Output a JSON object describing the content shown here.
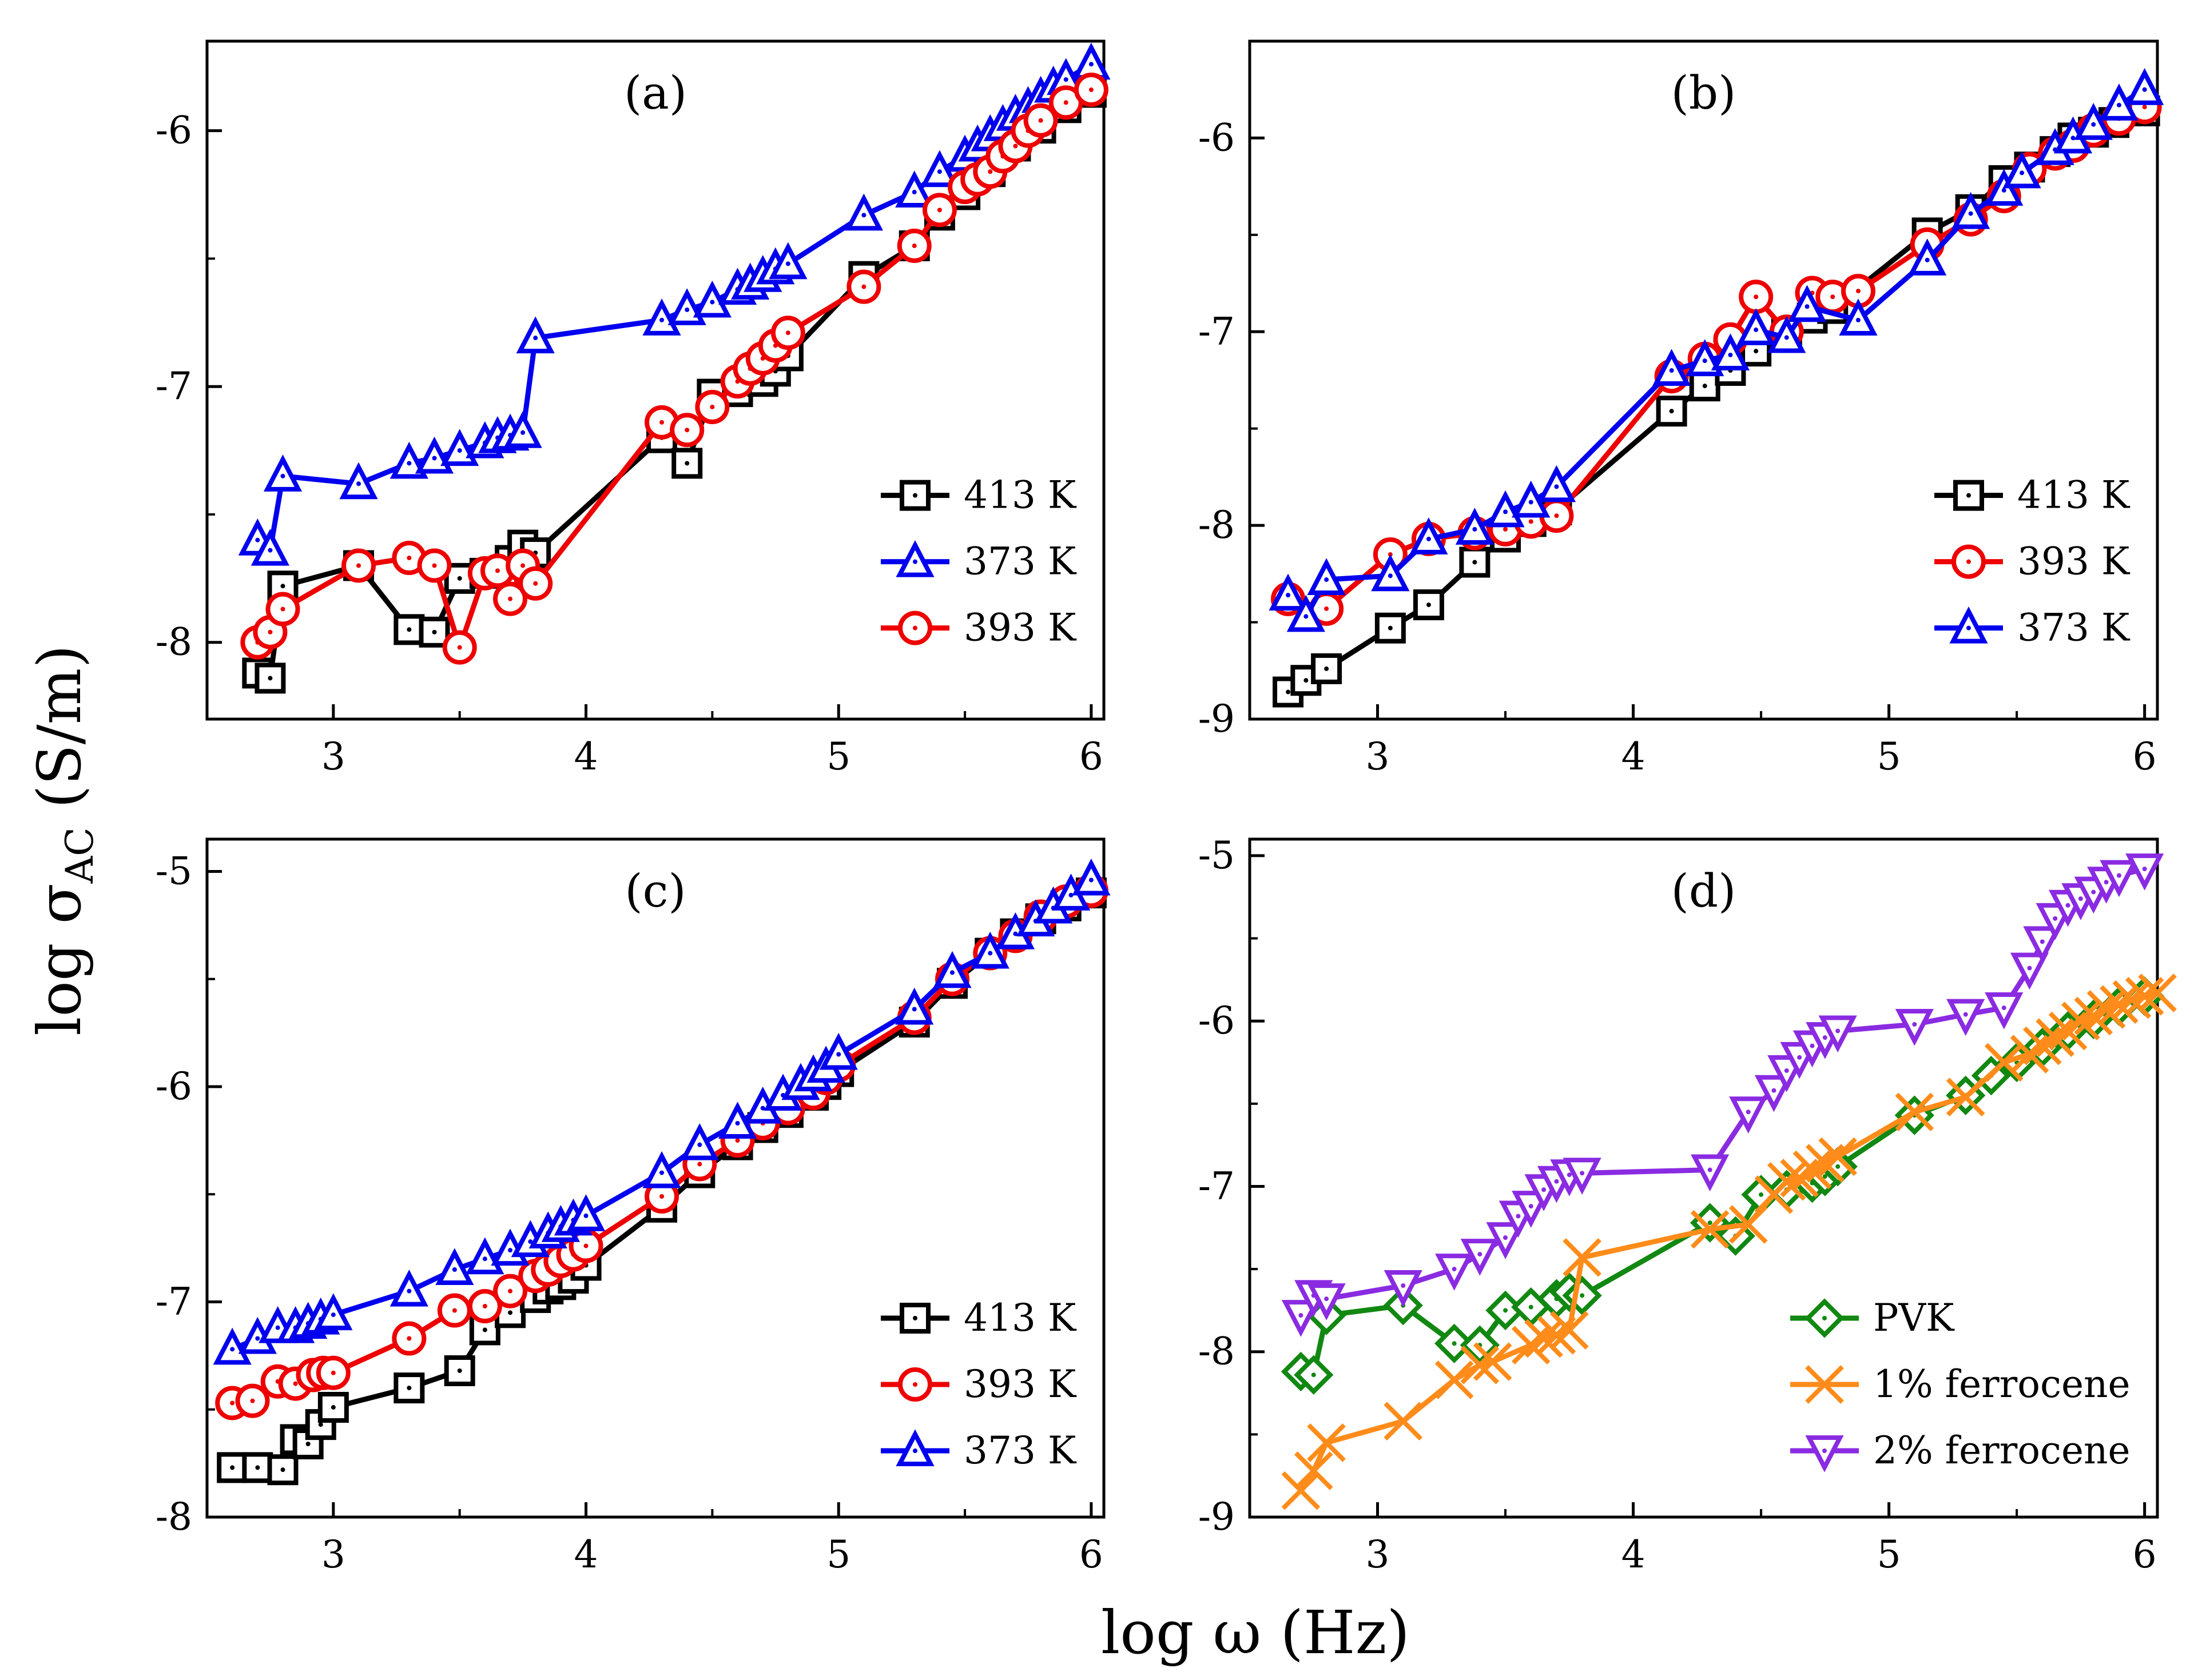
{
  "figure": {
    "xlabel_main": "log ω (Hz)",
    "ylabel_main_prefix": "log σ",
    "ylabel_main_sub": "AC",
    "ylabel_main_suffix": " (S/m)"
  },
  "chart_data": [
    {
      "type": "line",
      "panel_label": "(a)",
      "xlim": [
        2.5,
        6.05
      ],
      "ylim": [
        -8.3,
        -5.65
      ],
      "xticks": [
        3,
        4,
        5,
        6
      ],
      "yticks": [
        -8,
        -7,
        -6
      ],
      "legend": "right-middle",
      "series": [
        {
          "name": "413 K",
          "color": "#000000",
          "marker": "square",
          "x": [
            2.7,
            2.75,
            2.8,
            3.1,
            3.3,
            3.4,
            3.5,
            3.6,
            3.7,
            3.75,
            3.8,
            4.3,
            4.4,
            4.5,
            4.6,
            4.7,
            4.75,
            4.8,
            5.1,
            5.3,
            5.4,
            5.5,
            5.6,
            5.7,
            5.8,
            5.9,
            6.0
          ],
          "y": [
            -8.12,
            -8.14,
            -7.78,
            -7.7,
            -7.95,
            -7.96,
            -7.75,
            -7.73,
            -7.68,
            -7.62,
            -7.65,
            -7.2,
            -7.3,
            -7.03,
            -7.02,
            -6.98,
            -6.94,
            -6.88,
            -6.57,
            -6.45,
            -6.33,
            -6.25,
            -6.16,
            -6.06,
            -5.99,
            -5.91,
            -5.85
          ]
        },
        {
          "name": "373 K",
          "color": "#0000ee",
          "marker": "triangle",
          "x": [
            2.7,
            2.75,
            2.8,
            3.1,
            3.3,
            3.4,
            3.5,
            3.6,
            3.65,
            3.7,
            3.75,
            3.8,
            4.3,
            4.4,
            4.5,
            4.6,
            4.65,
            4.7,
            4.75,
            4.8,
            5.1,
            5.3,
            5.4,
            5.5,
            5.55,
            5.6,
            5.65,
            5.7,
            5.75,
            5.8,
            5.85,
            5.9,
            6.0
          ],
          "y": [
            -7.6,
            -7.64,
            -7.35,
            -7.38,
            -7.3,
            -7.28,
            -7.25,
            -7.22,
            -7.2,
            -7.19,
            -7.18,
            -6.81,
            -6.74,
            -6.7,
            -6.67,
            -6.62,
            -6.6,
            -6.57,
            -6.54,
            -6.52,
            -6.33,
            -6.24,
            -6.16,
            -6.1,
            -6.06,
            -6.02,
            -5.98,
            -5.94,
            -5.91,
            -5.87,
            -5.83,
            -5.8,
            -5.74
          ]
        },
        {
          "name": "393 K",
          "color": "#ee0000",
          "marker": "circle",
          "x": [
            2.7,
            2.75,
            2.8,
            3.1,
            3.3,
            3.4,
            3.5,
            3.6,
            3.65,
            3.7,
            3.75,
            3.8,
            4.3,
            4.4,
            4.5,
            4.6,
            4.65,
            4.7,
            4.75,
            4.8,
            5.1,
            5.3,
            5.4,
            5.5,
            5.55,
            5.6,
            5.65,
            5.7,
            5.75,
            5.8,
            5.9,
            6.0
          ],
          "y": [
            -8.0,
            -7.96,
            -7.87,
            -7.7,
            -7.67,
            -7.7,
            -8.02,
            -7.73,
            -7.72,
            -7.83,
            -7.7,
            -7.77,
            -7.14,
            -7.17,
            -7.08,
            -6.98,
            -6.93,
            -6.89,
            -6.84,
            -6.79,
            -6.61,
            -6.45,
            -6.31,
            -6.22,
            -6.19,
            -6.16,
            -6.1,
            -6.06,
            -6.0,
            -5.96,
            -5.89,
            -5.84
          ]
        }
      ]
    },
    {
      "type": "line",
      "panel_label": "(b)",
      "xlim": [
        2.5,
        6.05
      ],
      "ylim": [
        -9.0,
        -5.5
      ],
      "xticks": [
        3,
        4,
        5,
        6
      ],
      "yticks": [
        -9,
        -8,
        -7,
        -6
      ],
      "legend": "right-middle",
      "series": [
        {
          "name": "413 K",
          "color": "#000000",
          "marker": "square",
          "x": [
            2.65,
            2.72,
            2.8,
            3.05,
            3.2,
            3.38,
            3.5,
            3.6,
            3.7,
            4.15,
            4.28,
            4.38,
            4.48,
            4.6,
            4.7,
            4.78,
            5.15,
            5.32,
            5.45,
            5.55,
            5.65,
            5.72,
            5.8,
            5.88,
            6.0
          ],
          "y": [
            -8.86,
            -8.8,
            -8.74,
            -8.53,
            -8.41,
            -8.19,
            -8.06,
            -7.98,
            -7.92,
            -7.41,
            -7.28,
            -7.2,
            -7.1,
            -7.01,
            -6.93,
            -6.88,
            -6.49,
            -6.37,
            -6.22,
            -6.15,
            -6.07,
            -6.0,
            -5.97,
            -5.92,
            -5.86
          ]
        },
        {
          "name": "393 K",
          "color": "#ee0000",
          "marker": "circle",
          "x": [
            2.65,
            2.8,
            3.05,
            3.2,
            3.38,
            3.5,
            3.6,
            3.7,
            4.15,
            4.28,
            4.38,
            4.48,
            4.6,
            4.7,
            4.78,
            4.88,
            5.15,
            5.32,
            5.45,
            5.55,
            5.65,
            5.72,
            5.8,
            5.9,
            6.0
          ],
          "y": [
            -8.38,
            -8.43,
            -8.15,
            -8.07,
            -8.04,
            -8.02,
            -7.98,
            -7.95,
            -7.23,
            -7.14,
            -7.04,
            -6.82,
            -7.0,
            -6.8,
            -6.82,
            -6.79,
            -6.55,
            -6.42,
            -6.3,
            -6.16,
            -6.08,
            -6.04,
            -5.96,
            -5.9,
            -5.84
          ]
        },
        {
          "name": "373 K",
          "color": "#0000ee",
          "marker": "triangle",
          "x": [
            2.65,
            2.72,
            2.8,
            3.05,
            3.2,
            3.38,
            3.5,
            3.6,
            3.7,
            4.15,
            4.28,
            4.38,
            4.48,
            4.6,
            4.68,
            4.88,
            5.15,
            5.32,
            5.45,
            5.52,
            5.65,
            5.72,
            5.8,
            5.9,
            6.0
          ],
          "y": [
            -8.36,
            -8.47,
            -8.28,
            -8.26,
            -8.07,
            -8.02,
            -7.93,
            -7.88,
            -7.8,
            -7.2,
            -7.15,
            -7.12,
            -6.99,
            -7.03,
            -6.87,
            -6.94,
            -6.63,
            -6.39,
            -6.27,
            -6.18,
            -6.06,
            -6.0,
            -5.93,
            -5.83,
            -5.75
          ]
        }
      ]
    },
    {
      "type": "line",
      "panel_label": "(c)",
      "xlim": [
        2.5,
        6.05
      ],
      "ylim": [
        -8.0,
        -4.85
      ],
      "xticks": [
        3,
        4,
        5,
        6
      ],
      "yticks": [
        -8,
        -7,
        -6,
        -5
      ],
      "legend": "right-bottom",
      "series": [
        {
          "name": "413 K",
          "color": "#000000",
          "marker": "square",
          "x": [
            2.6,
            2.7,
            2.8,
            2.85,
            2.9,
            2.95,
            3.0,
            3.3,
            3.5,
            3.6,
            3.7,
            3.8,
            3.85,
            3.9,
            3.95,
            4.0,
            4.3,
            4.45,
            4.6,
            4.7,
            4.8,
            4.9,
            4.95,
            5.0,
            5.3,
            5.45,
            5.6,
            5.7,
            5.8,
            5.9,
            6.0
          ],
          "y": [
            -7.77,
            -7.77,
            -7.78,
            -7.64,
            -7.66,
            -7.57,
            -7.49,
            -7.4,
            -7.32,
            -7.13,
            -7.05,
            -6.98,
            -6.94,
            -6.92,
            -6.89,
            -6.83,
            -6.56,
            -6.4,
            -6.27,
            -6.19,
            -6.12,
            -6.04,
            -5.99,
            -5.93,
            -5.7,
            -5.52,
            -5.38,
            -5.29,
            -5.22,
            -5.16,
            -5.1
          ]
        },
        {
          "name": "393 K",
          "color": "#ee0000",
          "marker": "circle",
          "x": [
            2.6,
            2.68,
            2.78,
            2.85,
            2.92,
            2.96,
            3.0,
            3.3,
            3.48,
            3.6,
            3.7,
            3.8,
            3.85,
            3.9,
            3.95,
            4.0,
            4.3,
            4.45,
            4.6,
            4.7,
            4.8,
            4.9,
            4.95,
            5.0,
            5.3,
            5.45,
            5.6,
            5.7,
            5.8,
            5.9,
            6.0
          ],
          "y": [
            -7.47,
            -7.46,
            -7.37,
            -7.38,
            -7.34,
            -7.33,
            -7.33,
            -7.17,
            -7.04,
            -7.02,
            -6.95,
            -6.88,
            -6.85,
            -6.81,
            -6.78,
            -6.74,
            -6.51,
            -6.36,
            -6.25,
            -6.17,
            -6.1,
            -6.03,
            -5.96,
            -5.9,
            -5.68,
            -5.5,
            -5.38,
            -5.3,
            -5.21,
            -5.14,
            -5.09
          ]
        },
        {
          "name": "373 K",
          "color": "#0000ee",
          "marker": "triangle",
          "x": [
            2.6,
            2.7,
            2.78,
            2.85,
            2.9,
            2.95,
            3.0,
            3.3,
            3.48,
            3.6,
            3.7,
            3.78,
            3.85,
            3.9,
            3.95,
            4.0,
            4.3,
            4.45,
            4.6,
            4.7,
            4.78,
            4.85,
            4.9,
            4.95,
            5.0,
            5.3,
            5.45,
            5.6,
            5.7,
            5.78,
            5.85,
            5.92,
            6.0
          ],
          "y": [
            -7.22,
            -7.17,
            -7.12,
            -7.12,
            -7.1,
            -7.08,
            -7.06,
            -6.95,
            -6.85,
            -6.8,
            -6.76,
            -6.72,
            -6.68,
            -6.65,
            -6.62,
            -6.6,
            -6.4,
            -6.27,
            -6.17,
            -6.1,
            -6.04,
            -5.99,
            -5.95,
            -5.91,
            -5.85,
            -5.64,
            -5.47,
            -5.38,
            -5.29,
            -5.23,
            -5.17,
            -5.11,
            -5.04
          ]
        }
      ]
    },
    {
      "type": "line",
      "panel_label": "(d)",
      "xlim": [
        2.5,
        6.05
      ],
      "ylim": [
        -9.0,
        -4.9
      ],
      "xticks": [
        3,
        4,
        5,
        6
      ],
      "yticks": [
        -9,
        -8,
        -7,
        -6,
        -5
      ],
      "legend": "right-bottom",
      "series": [
        {
          "name": "PVK",
          "color": "#118811",
          "marker": "diamond",
          "x": [
            2.7,
            2.75,
            2.8,
            3.1,
            3.3,
            3.4,
            3.5,
            3.6,
            3.7,
            3.75,
            3.8,
            4.3,
            4.4,
            4.5,
            4.6,
            4.7,
            4.75,
            4.8,
            5.1,
            5.3,
            5.4,
            5.5,
            5.6,
            5.7,
            5.8,
            5.9,
            6.0
          ],
          "y": [
            -8.12,
            -8.14,
            -7.78,
            -7.72,
            -7.95,
            -7.96,
            -7.75,
            -7.73,
            -7.68,
            -7.64,
            -7.66,
            -7.22,
            -7.3,
            -7.05,
            -7.02,
            -6.98,
            -6.94,
            -6.88,
            -6.57,
            -6.45,
            -6.33,
            -6.25,
            -6.16,
            -6.06,
            -5.99,
            -5.91,
            -5.85
          ]
        },
        {
          "name": "1% ferrocene",
          "color": "#ff8c1a",
          "marker": "x",
          "x": [
            2.7,
            2.75,
            2.8,
            3.1,
            3.3,
            3.4,
            3.45,
            3.6,
            3.65,
            3.7,
            3.75,
            3.8,
            4.3,
            4.45,
            4.55,
            4.6,
            4.65,
            4.7,
            4.75,
            4.8,
            5.1,
            5.3,
            5.45,
            5.55,
            5.6,
            5.65,
            5.7,
            5.75,
            5.8,
            5.85,
            5.9,
            5.95,
            6.0,
            6.05
          ],
          "y": [
            -8.84,
            -8.72,
            -8.55,
            -8.42,
            -8.17,
            -8.08,
            -8.06,
            -7.96,
            -7.92,
            -7.9,
            -7.87,
            -7.43,
            -7.26,
            -7.23,
            -7.05,
            -6.97,
            -6.95,
            -6.9,
            -6.86,
            -6.82,
            -6.55,
            -6.46,
            -6.25,
            -6.2,
            -6.15,
            -6.1,
            -6.06,
            -6.0,
            -5.97,
            -5.93,
            -5.9,
            -5.87,
            -5.85,
            -5.83
          ]
        },
        {
          "name": "2% ferrocene",
          "color": "#8a2be2",
          "marker": "triangle-down",
          "x": [
            2.7,
            2.75,
            2.8,
            3.1,
            3.3,
            3.4,
            3.5,
            3.55,
            3.6,
            3.65,
            3.7,
            3.75,
            3.8,
            4.3,
            4.45,
            4.55,
            4.6,
            4.65,
            4.7,
            4.75,
            4.8,
            5.1,
            5.3,
            5.45,
            5.55,
            5.6,
            5.65,
            5.7,
            5.75,
            5.8,
            5.85,
            5.9,
            6.0
          ],
          "y": [
            -7.78,
            -7.66,
            -7.68,
            -7.6,
            -7.5,
            -7.41,
            -7.31,
            -7.18,
            -7.12,
            -7.02,
            -6.97,
            -6.93,
            -6.92,
            -6.9,
            -6.55,
            -6.42,
            -6.3,
            -6.22,
            -6.15,
            -6.1,
            -6.06,
            -6.02,
            -5.96,
            -5.92,
            -5.68,
            -5.52,
            -5.38,
            -5.3,
            -5.26,
            -5.22,
            -5.16,
            -5.12,
            -5.08
          ]
        }
      ]
    }
  ]
}
